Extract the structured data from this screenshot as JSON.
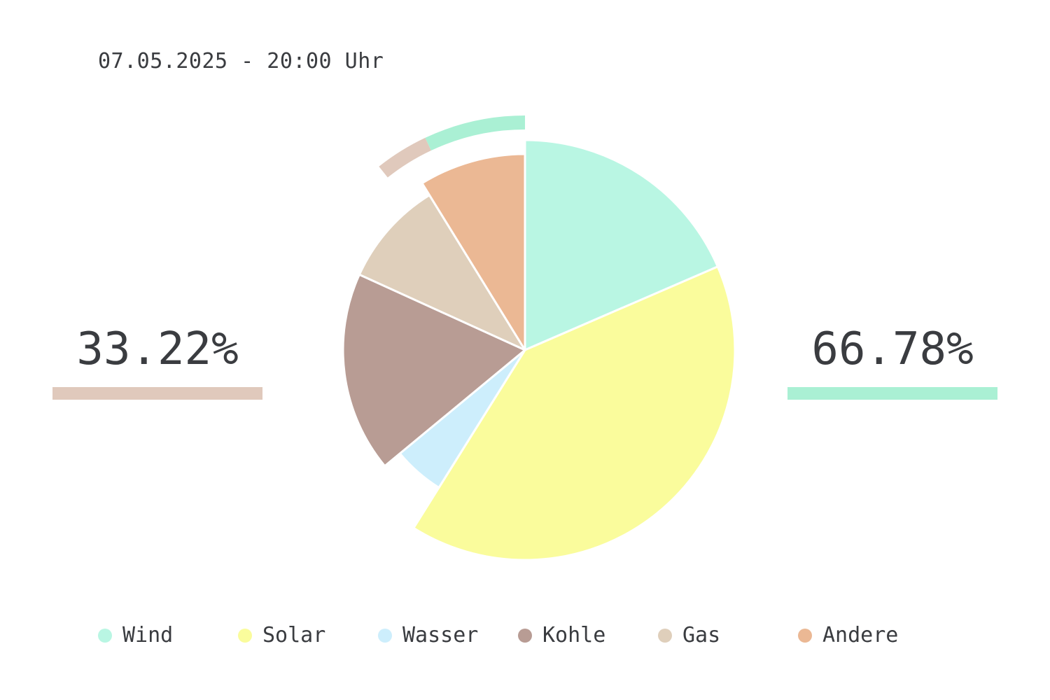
{
  "header": {
    "timestamp": "07.05.2025 - 20:00 Uhr"
  },
  "summary": {
    "left_percent": "33.22%",
    "right_percent": "66.78%",
    "left_color": "#e0c9bc",
    "right_color": "#aaf0d4"
  },
  "chart_data": {
    "type": "pie",
    "categories": [
      "Wind",
      "Solar",
      "Wasser",
      "Kohle",
      "Gas",
      "Andere"
    ],
    "values": [
      18.5,
      40.4,
      5.1,
      17.8,
      9.4,
      8.8
    ],
    "colors": [
      "#b9f6e3",
      "#fafc9c",
      "#cdeefc",
      "#b89c94",
      "#dfcfbb",
      "#ebb894"
    ],
    "outer_arcs": [
      {
        "color": "#aaf0d4",
        "start_percent": 93.0,
        "end_percent": 100.0
      },
      {
        "color": "#e0c9bc",
        "start_percent": 89.3,
        "end_percent": 93.0
      }
    ]
  },
  "legend": {
    "items": [
      {
        "label": "Wind",
        "color": "#b9f6e3"
      },
      {
        "label": "Solar",
        "color": "#fafc9c"
      },
      {
        "label": "Wasser",
        "color": "#cdeefc"
      },
      {
        "label": "Kohle",
        "color": "#b89c94"
      },
      {
        "label": "Gas",
        "color": "#dfcfbb"
      },
      {
        "label": "Andere",
        "color": "#ebb894"
      }
    ]
  }
}
